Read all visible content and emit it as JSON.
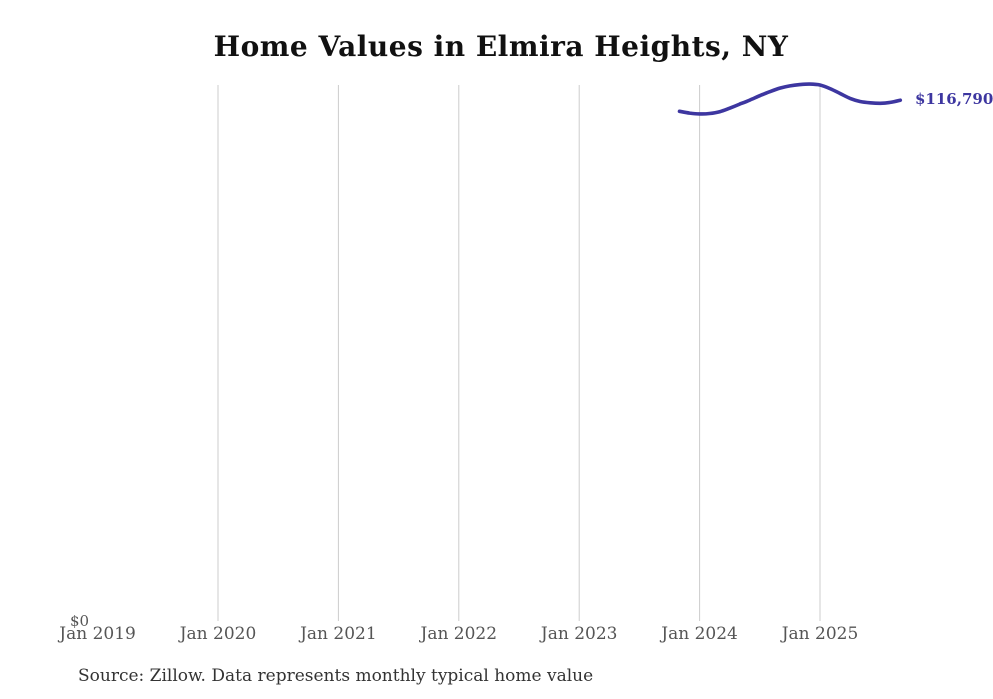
{
  "chart": {
    "title": "Home Values in Elmira Heights, NY",
    "zero_label": "$0",
    "end_label": "$116,790",
    "source_note": "Source: Zillow. Data represents monthly typical home value",
    "colors": {
      "line": "#3d36a0",
      "end_label": "#3d36a0",
      "gridline": "#cccccc",
      "title": "#111111",
      "axis_label": "#555555",
      "source": "#333333"
    }
  },
  "chart_data": {
    "type": "line",
    "title": "Home Values in Elmira Heights, NY",
    "ylabel": "",
    "xlabel": "",
    "ylim": [
      0,
      139300
    ],
    "grid": "vertical-only",
    "legend": "none",
    "y_ticks": [
      "$0"
    ],
    "x_ticks": [
      {
        "label": "Jan 2019",
        "month": "2019-01",
        "gridline": false
      },
      {
        "label": "Jan 2020",
        "month": "2020-01",
        "gridline": true
      },
      {
        "label": "Jan 2021",
        "month": "2021-01",
        "gridline": true
      },
      {
        "label": "Jan 2022",
        "month": "2022-01",
        "gridline": true
      },
      {
        "label": "Jan 2023",
        "month": "2023-01",
        "gridline": true
      },
      {
        "label": "Jan 2024",
        "month": "2024-01",
        "gridline": true
      },
      {
        "label": "Jan 2025",
        "month": "2025-01",
        "gridline": true
      }
    ],
    "series": [
      {
        "name": "Typical home value",
        "end_label": "$116,790",
        "points": [
          {
            "month": "2023-11",
            "value": 114300
          },
          {
            "month": "2023-12",
            "value": 113900
          },
          {
            "month": "2024-01",
            "value": 113700
          },
          {
            "month": "2024-02",
            "value": 113800
          },
          {
            "month": "2024-03",
            "value": 114200
          },
          {
            "month": "2024-04",
            "value": 115000
          },
          {
            "month": "2024-05",
            "value": 115900
          },
          {
            "month": "2024-06",
            "value": 116800
          },
          {
            "month": "2024-07",
            "value": 117800
          },
          {
            "month": "2024-08",
            "value": 118700
          },
          {
            "month": "2024-09",
            "value": 119500
          },
          {
            "month": "2024-10",
            "value": 120000
          },
          {
            "month": "2024-11",
            "value": 120300
          },
          {
            "month": "2024-12",
            "value": 120400
          },
          {
            "month": "2025-01",
            "value": 120200
          },
          {
            "month": "2025-02",
            "value": 119400
          },
          {
            "month": "2025-03",
            "value": 118300
          },
          {
            "month": "2025-04",
            "value": 117200
          },
          {
            "month": "2025-05",
            "value": 116500
          },
          {
            "month": "2025-06",
            "value": 116200
          },
          {
            "month": "2025-07",
            "value": 116100
          },
          {
            "month": "2025-08",
            "value": 116300
          },
          {
            "month": "2025-09",
            "value": 116790
          }
        ]
      }
    ]
  }
}
